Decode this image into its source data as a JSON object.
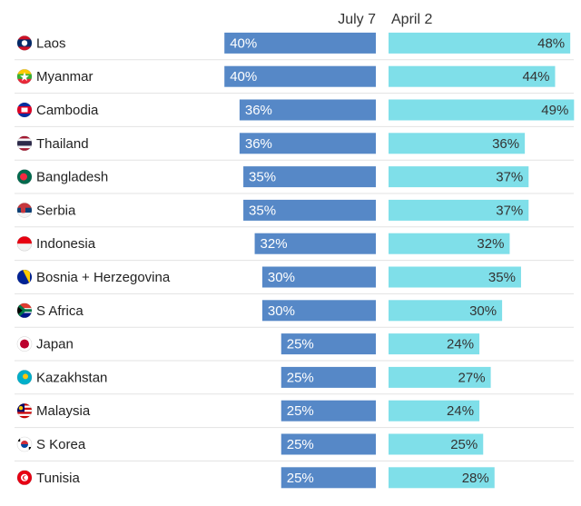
{
  "chart_data": {
    "type": "bar",
    "series": [
      {
        "name": "July 7",
        "color": "#5688c7",
        "values": [
          40,
          40,
          36,
          36,
          35,
          35,
          32,
          30,
          30,
          25,
          25,
          25,
          25,
          25
        ]
      },
      {
        "name": "April 2",
        "color": "#7fdfe9",
        "values": [
          48,
          44,
          49,
          36,
          37,
          37,
          32,
          35,
          30,
          24,
          27,
          24,
          25,
          28
        ]
      }
    ],
    "categories": [
      "Laos",
      "Myanmar",
      "Cambodia",
      "Thailand",
      "Bangladesh",
      "Serbia",
      "Indonesia",
      "Bosnia + Herzegovina",
      "S Africa",
      "Japan",
      "Kazakhstan",
      "Malaysia",
      "S Korea",
      "Tunisia"
    ],
    "value_suffix": "%",
    "flags": [
      "laos-flag-icon",
      "myanmar-flag-icon",
      "cambodia-flag-icon",
      "thailand-flag-icon",
      "bangladesh-flag-icon",
      "serbia-flag-icon",
      "indonesia-flag-icon",
      "bosnia-flag-icon",
      "south-africa-flag-icon",
      "japan-flag-icon",
      "kazakhstan-flag-icon",
      "malaysia-flag-icon",
      "south-korea-flag-icon",
      "tunisia-flag-icon"
    ],
    "grid": false,
    "legend": "top"
  }
}
